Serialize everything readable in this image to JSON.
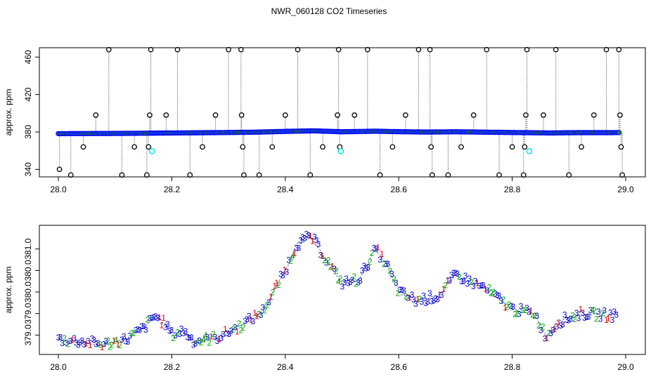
{
  "title": "NWR_060128  CO2 Timeseries",
  "colors": {
    "main_marker": "#0000ff",
    "main_fill": "#2255cc",
    "outlier": "#000000",
    "flag_cyan": "#00e5e5",
    "line_gray": "#8c8c8c",
    "digit_1": "#dd0000",
    "digit_2": "#00aa00",
    "digit_3": "#0000cc",
    "digit_4": "#008800"
  },
  "chart_data": [
    {
      "type": "scatter",
      "panel": "top",
      "ylabel": "approx. ppm",
      "xlabel": "",
      "xlim": [
        28.0,
        29.0
      ],
      "ylim": [
        332,
        470
      ],
      "x_ticks": [
        "28.0",
        "28.2",
        "28.4",
        "28.6",
        "28.8",
        "29.0"
      ],
      "y_ticks": [
        "340",
        "380",
        "420",
        "460"
      ],
      "grid": false,
      "baseline": [
        [
          28.0,
          378.2
        ],
        [
          28.1,
          378.4
        ],
        [
          28.2,
          378.9
        ],
        [
          28.3,
          379.4
        ],
        [
          28.35,
          379.8
        ],
        [
          28.4,
          380.6
        ],
        [
          28.45,
          381.2
        ],
        [
          28.5,
          380.2
        ],
        [
          28.56,
          380.8
        ],
        [
          28.6,
          380.3
        ],
        [
          28.65,
          379.9
        ],
        [
          28.7,
          380.2
        ],
        [
          28.8,
          379.4
        ],
        [
          28.87,
          378.9
        ],
        [
          28.9,
          379.2
        ],
        [
          28.99,
          379.3
        ]
      ],
      "outliers": [
        {
          "x": 28.002,
          "y": 340
        },
        {
          "x": 28.022,
          "y": 334
        },
        {
          "x": 28.044,
          "y": 364
        },
        {
          "x": 28.066,
          "y": 398
        },
        {
          "x": 28.089,
          "y": 468
        },
        {
          "x": 28.112,
          "y": 334
        },
        {
          "x": 28.134,
          "y": 364
        },
        {
          "x": 28.156,
          "y": 334
        },
        {
          "x": 28.159,
          "y": 364
        },
        {
          "x": 28.161,
          "y": 398
        },
        {
          "x": 28.163,
          "y": 468
        },
        {
          "x": 28.19,
          "y": 398
        },
        {
          "x": 28.21,
          "y": 468
        },
        {
          "x": 28.232,
          "y": 334
        },
        {
          "x": 28.254,
          "y": 364
        },
        {
          "x": 28.277,
          "y": 398
        },
        {
          "x": 28.3,
          "y": 468
        },
        {
          "x": 28.322,
          "y": 468
        },
        {
          "x": 28.323,
          "y": 398
        },
        {
          "x": 28.325,
          "y": 364
        },
        {
          "x": 28.327,
          "y": 334
        },
        {
          "x": 28.354,
          "y": 334
        },
        {
          "x": 28.377,
          "y": 364
        },
        {
          "x": 28.4,
          "y": 398
        },
        {
          "x": 28.422,
          "y": 468
        },
        {
          "x": 28.444,
          "y": 334
        },
        {
          "x": 28.466,
          "y": 364
        },
        {
          "x": 28.492,
          "y": 398
        },
        {
          "x": 28.494,
          "y": 468
        },
        {
          "x": 28.496,
          "y": 364
        },
        {
          "x": 28.522,
          "y": 398
        },
        {
          "x": 28.545,
          "y": 468
        },
        {
          "x": 28.567,
          "y": 334
        },
        {
          "x": 28.589,
          "y": 364
        },
        {
          "x": 28.612,
          "y": 398
        },
        {
          "x": 28.635,
          "y": 468
        },
        {
          "x": 28.655,
          "y": 468
        },
        {
          "x": 28.657,
          "y": 364
        },
        {
          "x": 28.659,
          "y": 334
        },
        {
          "x": 28.687,
          "y": 334
        },
        {
          "x": 28.71,
          "y": 364
        },
        {
          "x": 28.732,
          "y": 398
        },
        {
          "x": 28.755,
          "y": 468
        },
        {
          "x": 28.777,
          "y": 334
        },
        {
          "x": 28.8,
          "y": 364
        },
        {
          "x": 28.82,
          "y": 334
        },
        {
          "x": 28.822,
          "y": 364
        },
        {
          "x": 28.824,
          "y": 398
        },
        {
          "x": 28.826,
          "y": 468
        },
        {
          "x": 28.855,
          "y": 398
        },
        {
          "x": 28.877,
          "y": 468
        },
        {
          "x": 28.9,
          "y": 334
        },
        {
          "x": 28.922,
          "y": 364
        },
        {
          "x": 28.944,
          "y": 398
        },
        {
          "x": 28.966,
          "y": 468
        },
        {
          "x": 28.988,
          "y": 468
        },
        {
          "x": 28.99,
          "y": 398
        },
        {
          "x": 28.992,
          "y": 364
        },
        {
          "x": 28.994,
          "y": 334
        }
      ],
      "cyan_points": [
        {
          "x": 28.165,
          "y": 359.5
        },
        {
          "x": 28.498,
          "y": 359.5
        },
        {
          "x": 28.83,
          "y": 359.5
        }
      ]
    },
    {
      "type": "scatter",
      "panel": "bottom",
      "ylabel": "approx. ppm",
      "xlabel": "",
      "xlim": [
        28.0,
        29.0
      ],
      "ylim": [
        378.55,
        381.55
      ],
      "x_ticks": [
        "28.0",
        "28.2",
        "28.4",
        "28.6",
        "28.8",
        "29.0"
      ],
      "y_ticks": [
        "379.0",
        "379.0",
        "380.0",
        "380.0",
        "381.0"
      ],
      "grid": false,
      "series_markers": [
        "1",
        "2",
        "3",
        "4"
      ],
      "trace": [
        [
          28.0,
          378.9
        ],
        [
          28.04,
          378.85
        ],
        [
          28.08,
          378.78
        ],
        [
          28.12,
          378.9
        ],
        [
          28.15,
          379.15
        ],
        [
          28.17,
          379.45
        ],
        [
          28.19,
          379.25
        ],
        [
          28.2,
          379.0
        ],
        [
          28.22,
          379.1
        ],
        [
          28.24,
          378.85
        ],
        [
          28.28,
          378.95
        ],
        [
          28.32,
          379.2
        ],
        [
          28.36,
          379.55
        ],
        [
          28.4,
          380.5
        ],
        [
          28.42,
          381.1
        ],
        [
          28.445,
          381.3
        ],
        [
          28.47,
          380.8
        ],
        [
          28.5,
          380.2
        ],
        [
          28.53,
          380.3
        ],
        [
          28.56,
          381.0
        ],
        [
          28.58,
          380.6
        ],
        [
          28.6,
          380.0
        ],
        [
          28.63,
          379.8
        ],
        [
          28.67,
          379.9
        ],
        [
          28.7,
          380.4
        ],
        [
          28.75,
          380.1
        ],
        [
          28.8,
          379.6
        ],
        [
          28.84,
          379.5
        ],
        [
          28.86,
          378.95
        ],
        [
          28.88,
          379.3
        ],
        [
          28.92,
          379.5
        ],
        [
          28.98,
          379.45
        ]
      ]
    }
  ]
}
